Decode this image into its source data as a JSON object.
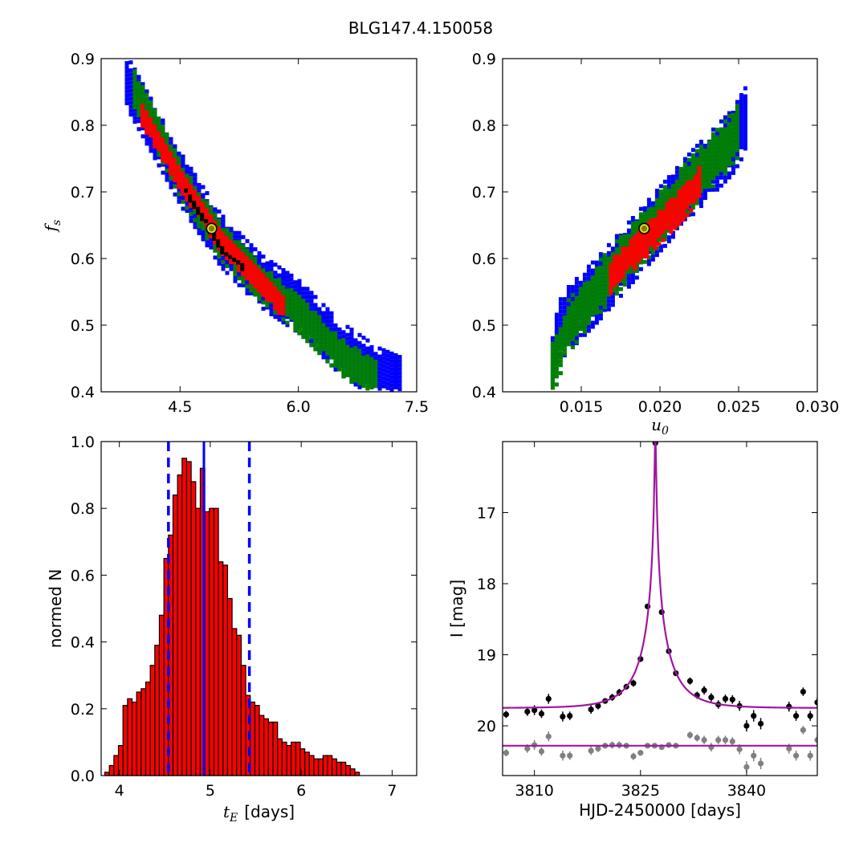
{
  "title": "BLG147.4.150058",
  "chart_data": [
    {
      "type": "heatmap",
      "panel": "top-left",
      "xlabel": "",
      "ylabel_main": "f",
      "ylabel_sub": "s",
      "xlim": [
        3.5,
        7.5
      ],
      "ylim": [
        0.4,
        0.9
      ],
      "xticks": [
        "4.5",
        "6.0",
        "7.5"
      ],
      "xtick_values": [
        4.5,
        6.0,
        7.5
      ],
      "yticks": [
        "0.4",
        "0.5",
        "0.6",
        "0.7",
        "0.8",
        "0.9"
      ],
      "ytick_values": [
        0.4,
        0.5,
        0.6,
        0.7,
        0.8,
        0.9
      ],
      "levels": [
        {
          "color": "#0000ff",
          "ridge": [
            [
              3.8,
              0.87
            ],
            [
              4.5,
              0.72
            ],
            [
              5.0,
              0.63
            ],
            [
              5.5,
              0.57
            ],
            [
              6.0,
              0.53
            ],
            [
              6.5,
              0.47
            ],
            [
              7.0,
              0.43
            ],
            [
              7.3,
              0.415
            ]
          ],
          "halfwidth": 0.04
        },
        {
          "color": "#008000",
          "ridge": [
            [
              3.9,
              0.86
            ],
            [
              4.5,
              0.72
            ],
            [
              5.0,
              0.63
            ],
            [
              5.5,
              0.57
            ],
            [
              6.0,
              0.52
            ],
            [
              6.5,
              0.46
            ],
            [
              7.0,
              0.42
            ]
          ],
          "halfwidth": 0.03
        },
        {
          "color": "#ff0000",
          "ridge": [
            [
              4.0,
              0.82
            ],
            [
              4.5,
              0.72
            ],
            [
              5.0,
              0.63
            ],
            [
              5.5,
              0.57
            ],
            [
              5.8,
              0.53
            ]
          ],
          "halfwidth": 0.018
        },
        {
          "color": "#000000",
          "ridge": [
            [
              4.55,
              0.705
            ],
            [
              4.8,
              0.66
            ],
            [
              5.05,
              0.61
            ],
            [
              5.3,
              0.59
            ]
          ],
          "halfwidth": 0.006
        }
      ],
      "best_fit": {
        "x": 4.9,
        "y": 0.645
      }
    },
    {
      "type": "heatmap",
      "panel": "top-right",
      "xlabel_main": "u",
      "xlabel_sub": "0",
      "xlim": [
        0.01,
        0.03
      ],
      "ylim": [
        0.4,
        0.9
      ],
      "xticks": [
        "0.015",
        "0.020",
        "0.025",
        "0.030"
      ],
      "xtick_values": [
        0.015,
        0.02,
        0.025,
        0.03
      ],
      "yticks": [
        "0.4",
        "0.5",
        "0.6",
        "0.7",
        "0.8",
        "0.9"
      ],
      "ytick_values": [
        0.4,
        0.5,
        0.6,
        0.7,
        0.8,
        0.9
      ],
      "levels": [
        {
          "color": "#0000ff",
          "ridge": [
            [
              0.0128,
              0.42
            ],
            [
              0.0135,
              0.5
            ],
            [
              0.016,
              0.56
            ],
            [
              0.019,
              0.64
            ],
            [
              0.022,
              0.72
            ],
            [
              0.0245,
              0.78
            ],
            [
              0.0255,
              0.82
            ]
          ],
          "halfwidth": 0.05
        },
        {
          "color": "#008000",
          "ridge": [
            [
              0.0128,
              0.42
            ],
            [
              0.014,
              0.5
            ],
            [
              0.016,
              0.56
            ],
            [
              0.019,
              0.64
            ],
            [
              0.022,
              0.72
            ],
            [
              0.024,
              0.77
            ],
            [
              0.025,
              0.8
            ]
          ],
          "halfwidth": 0.04
        },
        {
          "color": "#ff0000",
          "ridge": [
            [
              0.0165,
              0.57
            ],
            [
              0.019,
              0.63
            ],
            [
              0.0215,
              0.69
            ],
            [
              0.0225,
              0.72
            ]
          ],
          "halfwidth": 0.025
        }
      ],
      "best_fit": {
        "x": 0.019,
        "y": 0.645
      }
    },
    {
      "type": "bar",
      "panel": "bottom-left",
      "xlabel_main": "t",
      "xlabel_sub": "E",
      "xlabel_rest": "[days]",
      "ylabel": "normed N",
      "xlim": [
        3.8,
        7.27
      ],
      "ylim": [
        0.0,
        1.0
      ],
      "xticks": [
        "4",
        "5",
        "6",
        "7"
      ],
      "xtick_values": [
        4,
        5,
        6,
        7
      ],
      "yticks": [
        "0.0",
        "0.2",
        "0.4",
        "0.6",
        "0.8",
        "1.0"
      ],
      "ytick_values": [
        0.0,
        0.2,
        0.4,
        0.6,
        0.8,
        1.0
      ],
      "bin_start": 3.84,
      "bin_width": 0.05,
      "values": [
        0.01,
        0.03,
        0.06,
        0.09,
        0.21,
        0.23,
        0.22,
        0.25,
        0.26,
        0.28,
        0.33,
        0.39,
        0.48,
        0.65,
        0.72,
        0.84,
        0.9,
        0.95,
        0.94,
        0.88,
        0.8,
        0.92,
        0.79,
        0.8,
        0.8,
        0.64,
        0.63,
        0.53,
        0.44,
        0.42,
        0.33,
        0.24,
        0.22,
        0.21,
        0.18,
        0.17,
        0.16,
        0.16,
        0.11,
        0.1,
        0.09,
        0.1,
        0.1,
        0.08,
        0.07,
        0.06,
        0.05,
        0.05,
        0.06,
        0.06,
        0.05,
        0.04,
        0.04,
        0.03,
        0.02,
        0.01,
        0.0,
        0.0
      ],
      "bar_color": "#ff0000",
      "median": 4.93,
      "lower": 4.54,
      "upper": 5.43,
      "line_color": "#0000ff"
    },
    {
      "type": "scatter",
      "panel": "bottom-right",
      "xlabel": "HJD-2450000 [days]",
      "ylabel": "I [mag]",
      "xlim": [
        3805.5,
        3850.0
      ],
      "ylim": [
        20.7,
        16.0
      ],
      "xticks": [
        "3810",
        "3825",
        "3840"
      ],
      "xtick_values": [
        3810,
        3825,
        3840
      ],
      "yticks": [
        "17",
        "18",
        "19",
        "20"
      ],
      "ytick_values": [
        17,
        18,
        19,
        20
      ],
      "model": {
        "t0": 3827.1,
        "u0": 0.019,
        "tE": 4.93,
        "fs": 0.645,
        "baseline": 19.75,
        "color": "#a0169f"
      },
      "residual_level": 20.28,
      "points_black": [
        [
          3806,
          19.84,
          0.05
        ],
        [
          3809,
          19.8,
          0.06
        ],
        [
          3810,
          19.78,
          0.07
        ],
        [
          3811,
          19.83,
          0.06
        ],
        [
          3812,
          19.62,
          0.07
        ],
        [
          3814,
          19.87,
          0.07
        ],
        [
          3815,
          19.86,
          0.06
        ],
        [
          3818,
          19.77,
          0.06
        ],
        [
          3819,
          19.72,
          0.05
        ],
        [
          3820,
          19.65,
          0.04
        ],
        [
          3821,
          19.6,
          0.05
        ],
        [
          3822,
          19.53,
          0.05
        ],
        [
          3823,
          19.45,
          0.04
        ],
        [
          3824,
          19.4,
          0.05
        ],
        [
          3825,
          19.06,
          0.04
        ],
        [
          3826,
          18.32,
          0.03
        ],
        [
          3827.1,
          16.02,
          0.03
        ],
        [
          3828,
          18.4,
          0.03
        ],
        [
          3829,
          18.95,
          0.04
        ],
        [
          3830,
          19.26,
          0.04
        ],
        [
          3832,
          19.37,
          0.05
        ],
        [
          3833,
          19.57,
          0.05
        ],
        [
          3834,
          19.5,
          0.06
        ],
        [
          3835,
          19.6,
          0.06
        ],
        [
          3836,
          19.7,
          0.06
        ],
        [
          3837,
          19.62,
          0.06
        ],
        [
          3838,
          19.63,
          0.06
        ],
        [
          3839,
          19.72,
          0.07
        ],
        [
          3840,
          20.0,
          0.08
        ],
        [
          3841,
          19.86,
          0.08
        ],
        [
          3842,
          19.97,
          0.08
        ],
        [
          3846,
          19.73,
          0.07
        ],
        [
          3847,
          19.86,
          0.07
        ],
        [
          3848,
          19.52,
          0.06
        ],
        [
          3849,
          19.86,
          0.07
        ],
        [
          3850,
          19.67,
          0.07
        ]
      ],
      "points_gray": [
        [
          3806,
          20.38,
          0.05
        ],
        [
          3809,
          20.32,
          0.06
        ],
        [
          3810,
          20.27,
          0.07
        ],
        [
          3811,
          20.36,
          0.06
        ],
        [
          3812,
          20.15,
          0.07
        ],
        [
          3814,
          20.42,
          0.07
        ],
        [
          3815,
          20.42,
          0.06
        ],
        [
          3818,
          20.35,
          0.06
        ],
        [
          3819,
          20.32,
          0.05
        ],
        [
          3820,
          20.28,
          0.04
        ],
        [
          3821,
          20.27,
          0.05
        ],
        [
          3822,
          20.27,
          0.05
        ],
        [
          3823,
          20.28,
          0.04
        ],
        [
          3824,
          20.43,
          0.05
        ],
        [
          3825,
          20.38,
          0.04
        ],
        [
          3826,
          20.28,
          0.03
        ],
        [
          3827,
          20.28,
          0.03
        ],
        [
          3828,
          20.3,
          0.03
        ],
        [
          3829,
          20.27,
          0.04
        ],
        [
          3830,
          20.28,
          0.04
        ],
        [
          3832,
          20.13,
          0.05
        ],
        [
          3833,
          20.17,
          0.05
        ],
        [
          3834,
          20.2,
          0.06
        ],
        [
          3835,
          20.3,
          0.06
        ],
        [
          3836,
          20.2,
          0.06
        ],
        [
          3837,
          20.2,
          0.06
        ],
        [
          3838,
          20.22,
          0.06
        ],
        [
          3839,
          20.33,
          0.07
        ],
        [
          3840,
          20.58,
          0.08
        ],
        [
          3841,
          20.42,
          0.08
        ],
        [
          3842,
          20.53,
          0.08
        ],
        [
          3846,
          20.32,
          0.07
        ],
        [
          3847,
          20.42,
          0.07
        ],
        [
          3848,
          20.06,
          0.06
        ],
        [
          3849,
          20.42,
          0.07
        ],
        [
          3850,
          20.2,
          0.07
        ]
      ]
    }
  ]
}
